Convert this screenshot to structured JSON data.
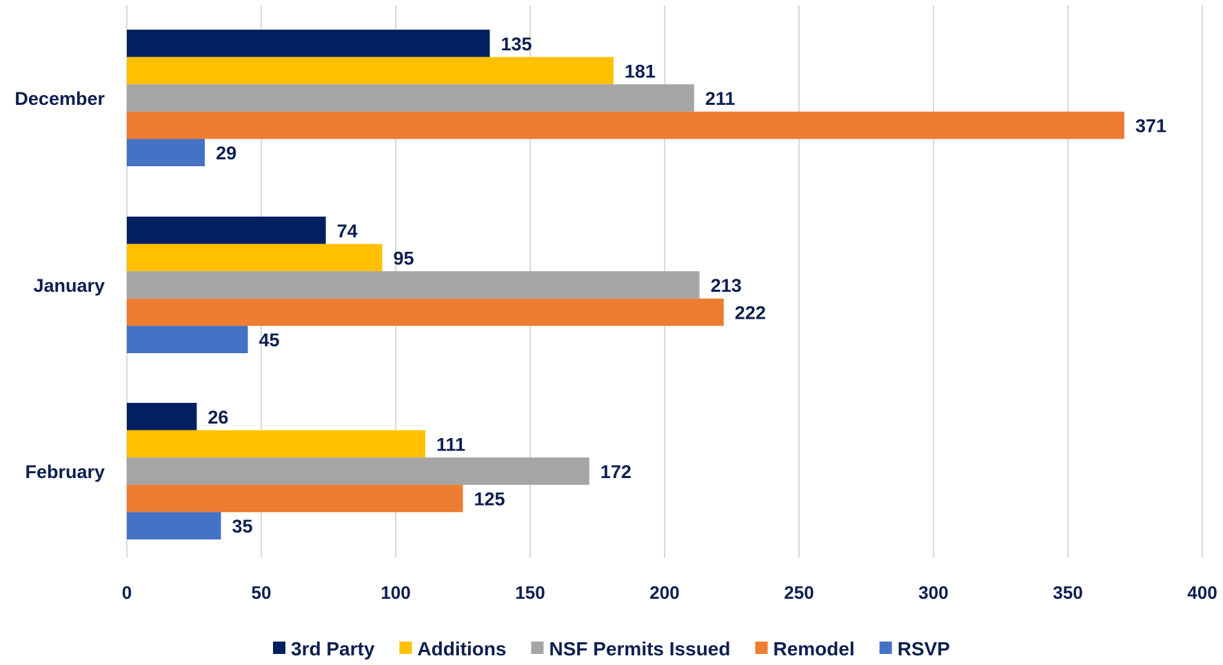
{
  "chart_data": {
    "type": "bar",
    "orientation": "horizontal",
    "title": "",
    "xlabel": "",
    "ylabel": "",
    "categories": [
      "December",
      "January",
      "February"
    ],
    "series": [
      {
        "name": "3rd Party",
        "color": "#002060",
        "values": [
          135,
          74,
          26
        ]
      },
      {
        "name": "Additions",
        "color": "#FFC000",
        "values": [
          181,
          95,
          111
        ]
      },
      {
        "name": "NSF Permits Issued",
        "color": "#A5A5A5",
        "values": [
          211,
          213,
          172
        ]
      },
      {
        "name": "Remodel",
        "color": "#ED7D31",
        "values": [
          371,
          222,
          125
        ]
      },
      {
        "name": "RSVP",
        "color": "#4472C4",
        "values": [
          29,
          45,
          35
        ]
      }
    ],
    "xlim": [
      0,
      400
    ],
    "xticks": [
      0,
      50,
      100,
      150,
      200,
      250,
      300,
      350,
      400
    ],
    "grid": "vertical",
    "legend": "bottom-center",
    "data_labels": true,
    "label_color": "#0D1F4F"
  }
}
